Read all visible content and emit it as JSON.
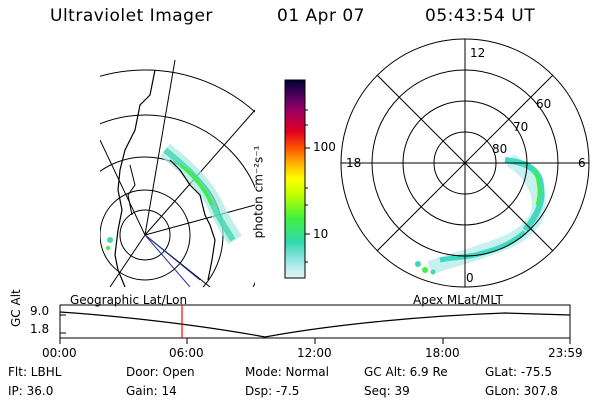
{
  "header": {
    "title": "Ultraviolet Imager",
    "date": "01 Apr 07",
    "time": "05:43:54 UT"
  },
  "colorbar": {
    "unit_label": "photon cm⁻²s⁻¹",
    "ticks": [
      "100",
      "10"
    ],
    "colors": [
      "#000033",
      "#3a0050",
      "#8a0070",
      "#cc0040",
      "#ff0000",
      "#ff7000",
      "#ffc000",
      "#ffff00",
      "#b0ff00",
      "#40ff40",
      "#00e8a0",
      "#40d0d0",
      "#a0e8e8",
      "#e0f4f4"
    ]
  },
  "polar_plot": {
    "labels": {
      "top": "12",
      "left": "18",
      "right": "6",
      "bottom": "0"
    },
    "lat_labels": [
      "60",
      "70",
      "80"
    ]
  },
  "timeline": {
    "ylabel": "GC Alt",
    "yticks": [
      "9.0",
      "1.8"
    ],
    "left_caption": "Geographic Lat/Lon",
    "right_caption": "Apex  MLat/MLT",
    "xticks": [
      "00:00",
      "06:00",
      "12:00",
      "18:00",
      "23:59"
    ],
    "marker_color": "#ff0000"
  },
  "info": {
    "flt": "Flt: LBHL",
    "ip": "IP: 36.0",
    "door": "Door: Open",
    "gain": "Gain: 14",
    "mode": "Mode: Normal",
    "dsp": "Dsp:    -7.5",
    "gcalt": "GC Alt: 6.9 Re",
    "seq": "Seq: 39",
    "glat": "GLat: -75.5",
    "glon": "GLon: 307.8"
  }
}
